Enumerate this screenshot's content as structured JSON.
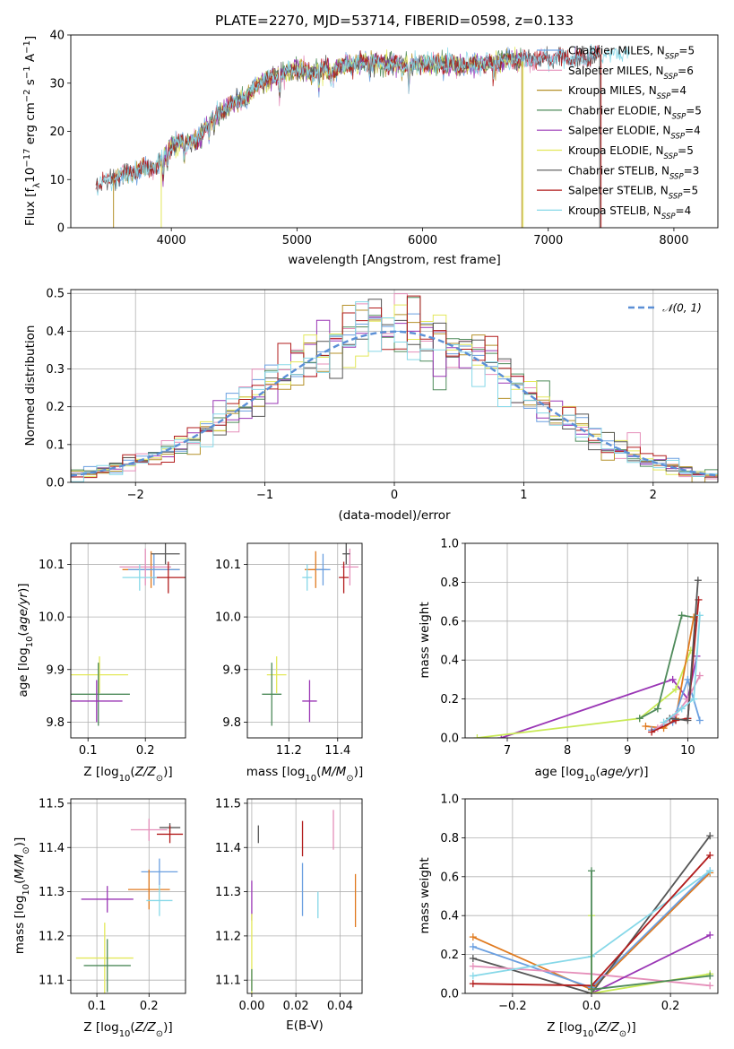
{
  "figure": {
    "title": "PLATE=2270, MJD=53714, FIBERID=0598, z=0.133"
  },
  "colors": {
    "Chabrier MILES": "#6a9fe0",
    "Salpeter MILES": "#e58fba",
    "Kroupa MILES": "#b5912a",
    "Chabrier ELODIE": "#4e8a5a",
    "Salpeter ELODIE": "#9a36b5",
    "Kroupa ELODIE": "#e3e85a",
    "Chabrier STELIB": "#555555",
    "Salpeter STELIB": "#b21c1c",
    "Kroupa STELIB": "#86d8e8",
    "extra_orange": "#e07a1f",
    "extra_lime": "#c9ea55",
    "normal_curve": "#5b8fd6"
  },
  "chart_data": [
    {
      "id": "spectrum",
      "type": "line",
      "title": "PLATE=2270, MJD=53714, FIBERID=0598, z=0.133",
      "xlabel": "wavelength [Angstrom, rest frame]",
      "ylabel_parts": [
        "Flux [f",
        "λ",
        "10",
        "−17",
        " erg cm",
        "−2",
        " s",
        "−1",
        " A",
        "−1",
        "]"
      ],
      "xlim": [
        3200,
        8350
      ],
      "ylim": [
        0,
        40
      ],
      "xticks": [
        4000,
        5000,
        6000,
        7000,
        8000
      ],
      "yticks": [
        0,
        10,
        20,
        30,
        40
      ],
      "grid": false,
      "legend_position": "top-right",
      "legend": [
        {
          "name": "Chabrier MILES",
          "nssp": "5"
        },
        {
          "name": "Salpeter MILES",
          "nssp": "6"
        },
        {
          "name": "Kroupa MILES",
          "nssp": "4"
        },
        {
          "name": "Chabrier ELODIE",
          "nssp": "5"
        },
        {
          "name": "Salpeter ELODIE",
          "nssp": "4"
        },
        {
          "name": "Kroupa ELODIE",
          "nssp": "5"
        },
        {
          "name": "Chabrier STELIB",
          "nssp": "3"
        },
        {
          "name": "Salpeter STELIB",
          "nssp": "5"
        },
        {
          "name": "Kroupa STELIB",
          "nssp": "4"
        }
      ],
      "continuum": [
        [
          3400,
          9
        ],
        [
          3500,
          10
        ],
        [
          3600,
          11
        ],
        [
          3700,
          11.5
        ],
        [
          3800,
          12.5
        ],
        [
          3900,
          13
        ],
        [
          4000,
          17
        ],
        [
          4100,
          18
        ],
        [
          4200,
          18
        ],
        [
          4300,
          22
        ],
        [
          4400,
          24
        ],
        [
          4500,
          26
        ],
        [
          4600,
          27
        ],
        [
          4700,
          30
        ],
        [
          4800,
          31
        ],
        [
          4900,
          32
        ],
        [
          5000,
          33
        ],
        [
          5100,
          32
        ],
        [
          5200,
          33
        ],
        [
          5300,
          32.5
        ],
        [
          5400,
          34
        ],
        [
          5500,
          34
        ],
        [
          5600,
          34.5
        ],
        [
          5700,
          34
        ],
        [
          5800,
          34
        ],
        [
          5900,
          33.5
        ],
        [
          6000,
          34
        ],
        [
          6100,
          34
        ],
        [
          6200,
          34
        ],
        [
          6300,
          33.5
        ],
        [
          6400,
          34
        ],
        [
          6500,
          34
        ],
        [
          6600,
          34.5
        ],
        [
          6700,
          35
        ],
        [
          6800,
          34.5
        ],
        [
          6900,
          35
        ],
        [
          7000,
          35
        ],
        [
          7100,
          35.5
        ],
        [
          7200,
          35
        ],
        [
          7300,
          35
        ],
        [
          7400,
          36
        ],
        [
          7500,
          36
        ],
        [
          7600,
          36
        ]
      ],
      "wavelength_range": [
        3400,
        7650
      ],
      "edge_drops": [
        {
          "model": "Kroupa MILES",
          "x": 3540,
          "side": "start"
        },
        {
          "model": "Kroupa ELODIE",
          "x": 3920,
          "side": "start"
        },
        {
          "model": "Kroupa ELODIE",
          "x": 6800,
          "side": "end"
        },
        {
          "model": "Kroupa MILES",
          "x": 6790,
          "side": "end"
        },
        {
          "model": "Salpeter STELIB",
          "x": 7420,
          "side": "end"
        },
        {
          "model": "Chabrier STELIB",
          "x": 7410,
          "side": "end"
        }
      ]
    },
    {
      "id": "residual_hist",
      "type": "histogram",
      "xlabel": "(data-model)/error",
      "ylabel": "Normed distribution",
      "xlim": [
        -2.5,
        2.5
      ],
      "ylim": [
        0,
        0.51
      ],
      "xticks": [
        -2,
        -1,
        0,
        1,
        2
      ],
      "yticks": [
        0.0,
        0.1,
        0.2,
        0.3,
        0.4,
        0.5
      ],
      "grid": true,
      "legend_position": "top-right",
      "legend": [
        {
          "name": "𝒩(0, 1)",
          "style": "dashed"
        }
      ],
      "bin_width": 0.1,
      "normal": {
        "mean": 0,
        "sigma": 1
      }
    },
    {
      "id": "age_vs_Z",
      "type": "errorbar",
      "xlabel": "Z [log10(Z/Z⊙)]",
      "ylabel": "age [log10(age/yr)]",
      "xlim": [
        0.07,
        0.27
      ],
      "ylim": [
        9.77,
        10.14
      ],
      "xticks": [
        0.1,
        0.2
      ],
      "yticks": [
        9.8,
        9.9,
        10.0,
        10.1
      ],
      "grid": true,
      "points": [
        {
          "model": "Kroupa MILES",
          "x": 0.21,
          "xerr": 0.05,
          "y": 10.09,
          "yerr": 0.035,
          "color": "#e07a1f"
        },
        {
          "model": "Chabrier MILES",
          "x": 0.215,
          "xerr": 0.045,
          "y": 10.09,
          "yerr": 0.03,
          "color": "#6a9fe0"
        },
        {
          "model": "Salpeter MILES",
          "x": 0.2,
          "xerr": 0.045,
          "y": 10.095,
          "yerr": 0.035,
          "color": "#e58fba"
        },
        {
          "model": "Chabrier STELIB",
          "x": 0.235,
          "xerr": 0.025,
          "y": 10.12,
          "yerr": 0.02,
          "color": "#555555"
        },
        {
          "model": "Salpeter STELIB",
          "x": 0.24,
          "xerr": 0.03,
          "y": 10.075,
          "yerr": 0.03,
          "color": "#b21c1c"
        },
        {
          "model": "Kroupa STELIB",
          "x": 0.19,
          "xerr": 0.03,
          "y": 10.075,
          "yerr": 0.025,
          "color": "#86d8e8"
        },
        {
          "model": "Kroupa ELODIE",
          "x": 0.12,
          "xerr": 0.05,
          "y": 9.89,
          "yerr": 0.035,
          "color": "#e3e85a"
        },
        {
          "model": "Chabrier ELODIE",
          "x": 0.118,
          "xerr": 0.055,
          "y": 9.853,
          "yerr": 0.06,
          "color": "#4e8a5a"
        },
        {
          "model": "Salpeter ELODIE",
          "x": 0.115,
          "xerr": 0.045,
          "y": 9.84,
          "yerr": 0.04,
          "color": "#9a36b5"
        }
      ]
    },
    {
      "id": "age_vs_mass",
      "type": "errorbar",
      "xlabel": "mass [log10(M/M⊙)]",
      "ylabel": "",
      "xlim": [
        11.03,
        11.5
      ],
      "ylim": [
        9.77,
        10.14
      ],
      "xticks": [
        11.2,
        11.4
      ],
      "yticks": [
        9.8,
        9.9,
        10.0,
        10.1
      ],
      "grid": true,
      "points": [
        {
          "model": "Kroupa MILES",
          "x": 11.31,
          "xerr": 0.045,
          "y": 10.09,
          "yerr": 0.035,
          "color": "#e07a1f"
        },
        {
          "model": "Chabrier MILES",
          "x": 11.34,
          "xerr": 0.03,
          "y": 10.09,
          "yerr": 0.03,
          "color": "#6a9fe0"
        },
        {
          "model": "Salpeter MILES",
          "x": 11.45,
          "xerr": 0.035,
          "y": 10.095,
          "yerr": 0.035,
          "color": "#e58fba"
        },
        {
          "model": "Chabrier STELIB",
          "x": 11.435,
          "xerr": 0.015,
          "y": 10.12,
          "yerr": 0.02,
          "color": "#555555"
        },
        {
          "model": "Salpeter STELIB",
          "x": 11.425,
          "xerr": 0.02,
          "y": 10.075,
          "yerr": 0.03,
          "color": "#b21c1c"
        },
        {
          "model": "Kroupa STELIB",
          "x": 11.275,
          "xerr": 0.02,
          "y": 10.075,
          "yerr": 0.025,
          "color": "#86d8e8"
        },
        {
          "model": "Kroupa ELODIE",
          "x": 11.15,
          "xerr": 0.04,
          "y": 9.89,
          "yerr": 0.035,
          "color": "#e3e85a"
        },
        {
          "model": "Chabrier ELODIE",
          "x": 11.13,
          "xerr": 0.04,
          "y": 9.853,
          "yerr": 0.06,
          "color": "#4e8a5a"
        },
        {
          "model": "Salpeter ELODIE",
          "x": 11.285,
          "xerr": 0.03,
          "y": 9.84,
          "yerr": 0.04,
          "color": "#9a36b5"
        }
      ]
    },
    {
      "id": "weight_vs_age",
      "type": "line",
      "xlabel": "age [log10(age/yr)]",
      "ylabel": "mass weight",
      "xlim": [
        6.3,
        10.5
      ],
      "ylim": [
        0,
        1.0
      ],
      "xticks": [
        7,
        8,
        9,
        10
      ],
      "yticks": [
        0.0,
        0.2,
        0.4,
        0.6,
        0.8,
        1.0
      ],
      "grid": true,
      "series": [
        {
          "model": "Salpeter ELODIE",
          "color": "#9a36b5",
          "x": [
            6.9,
            9.75,
            10.0,
            10.15
          ],
          "y": [
            0.0,
            0.3,
            0.2,
            0.42
          ]
        },
        {
          "model": "Kroupa ELODIE",
          "color": "#c9ea55",
          "x": [
            6.5,
            9.2,
            9.8,
            10.05
          ],
          "y": [
            0.0,
            0.1,
            0.25,
            0.45
          ]
        },
        {
          "model": "Chabrier ELODIE",
          "color": "#4e8a5a",
          "x": [
            9.2,
            9.5,
            9.9,
            10.1
          ],
          "y": [
            0.1,
            0.15,
            0.63,
            0.62
          ]
        },
        {
          "model": "Kroupa MILES",
          "color": "#e07a1f",
          "x": [
            9.3,
            9.6,
            9.8,
            10.1
          ],
          "y": [
            0.06,
            0.05,
            0.1,
            0.62
          ]
        },
        {
          "model": "Chabrier MILES",
          "color": "#6a9fe0",
          "x": [
            9.4,
            9.75,
            10.0,
            10.2
          ],
          "y": [
            0.04,
            0.08,
            0.3,
            0.09
          ]
        },
        {
          "model": "Salpeter MILES",
          "color": "#e58fba",
          "x": [
            9.5,
            9.8,
            10.0,
            10.2
          ],
          "y": [
            0.05,
            0.12,
            0.2,
            0.32
          ]
        },
        {
          "model": "Salpeter STELIB",
          "color": "#b21c1c",
          "x": [
            9.4,
            9.8,
            10.0,
            10.18
          ],
          "y": [
            0.03,
            0.09,
            0.1,
            0.71
          ]
        },
        {
          "model": "Chabrier STELIB",
          "color": "#555555",
          "x": [
            9.7,
            10.0,
            10.17
          ],
          "y": [
            0.1,
            0.09,
            0.81
          ]
        },
        {
          "model": "Kroupa STELIB",
          "color": "#86d8e8",
          "x": [
            9.6,
            9.9,
            10.1,
            10.2
          ],
          "y": [
            0.08,
            0.15,
            0.2,
            0.63
          ]
        }
      ]
    },
    {
      "id": "mass_vs_Z",
      "type": "errorbar",
      "xlabel": "Z [log10(Z/Z⊙)]",
      "ylabel": "mass [log10(M/M⊙)]",
      "xlim": [
        0.05,
        0.27
      ],
      "ylim": [
        11.07,
        11.51
      ],
      "xticks": [
        0.1,
        0.2
      ],
      "yticks": [
        11.1,
        11.2,
        11.3,
        11.4,
        11.5
      ],
      "grid": true,
      "points": [
        {
          "model": "Salpeter MILES",
          "x": 0.2,
          "xerr": 0.035,
          "y": 11.44,
          "yerr": 0.025,
          "color": "#e58fba"
        },
        {
          "model": "Chabrier STELIB",
          "x": 0.24,
          "xerr": 0.02,
          "y": 11.445,
          "yerr": 0.01,
          "color": "#555555"
        },
        {
          "model": "Salpeter STELIB",
          "x": 0.24,
          "xerr": 0.025,
          "y": 11.43,
          "yerr": 0.02,
          "color": "#b21c1c"
        },
        {
          "model": "Chabrier MILES",
          "x": 0.22,
          "xerr": 0.035,
          "y": 11.345,
          "yerr": 0.03,
          "color": "#6a9fe0"
        },
        {
          "model": "Kroupa MILES",
          "x": 0.2,
          "xerr": 0.04,
          "y": 11.305,
          "yerr": 0.045,
          "color": "#e07a1f"
        },
        {
          "model": "Kroupa STELIB",
          "x": 0.22,
          "xerr": 0.025,
          "y": 11.28,
          "yerr": 0.035,
          "color": "#86d8e8"
        },
        {
          "model": "Salpeter ELODIE",
          "x": 0.12,
          "xerr": 0.05,
          "y": 11.283,
          "yerr": 0.03,
          "color": "#9a36b5"
        },
        {
          "model": "Kroupa ELODIE",
          "x": 0.115,
          "xerr": 0.055,
          "y": 11.15,
          "yerr": 0.08,
          "color": "#e3e85a"
        },
        {
          "model": "Chabrier ELODIE",
          "x": 0.12,
          "xerr": 0.045,
          "y": 11.133,
          "yerr": 0.06,
          "color": "#4e8a5a"
        }
      ]
    },
    {
      "id": "mass_vs_ebv",
      "type": "errorbar",
      "xlabel": "E(B-V)",
      "ylabel": "",
      "xlim": [
        -0.002,
        0.05
      ],
      "ylim": [
        11.07,
        11.51
      ],
      "xticks": [
        0.0,
        0.02,
        0.04
      ],
      "yticks": [
        11.1,
        11.2,
        11.3,
        11.4,
        11.5
      ],
      "grid": true,
      "points": [
        {
          "model": "Chabrier STELIB",
          "x": 0.003,
          "xerr": 0.0,
          "y": 11.43,
          "yerr": 0.02,
          "color": "#555555"
        },
        {
          "model": "Salpeter STELIB",
          "x": 0.023,
          "xerr": 0.0,
          "y": 11.42,
          "yerr": 0.04,
          "color": "#b21c1c"
        },
        {
          "model": "Salpeter MILES",
          "x": 0.037,
          "xerr": 0.0,
          "y": 11.44,
          "yerr": 0.045,
          "color": "#e58fba"
        },
        {
          "model": "Chabrier MILES",
          "x": 0.023,
          "xerr": 0.0,
          "y": 11.305,
          "yerr": 0.06,
          "color": "#6a9fe0"
        },
        {
          "model": "Kroupa STELIB",
          "x": 0.03,
          "xerr": 0.0,
          "y": 11.27,
          "yerr": 0.03,
          "color": "#86d8e8"
        },
        {
          "model": "Kroupa MILES",
          "x": 0.047,
          "xerr": 0.0,
          "y": 11.28,
          "yerr": 0.06,
          "color": "#e07a1f"
        },
        {
          "model": "Salpeter ELODIE",
          "x": 0.0,
          "xerr": 0.0,
          "y": 11.28,
          "yerr": 0.045,
          "color": "#9a36b5"
        },
        {
          "model": "Kroupa ELODIE",
          "x": 0.0,
          "xerr": 0.0,
          "y": 11.16,
          "yerr": 0.09,
          "color": "#e3e85a"
        },
        {
          "model": "Chabrier ELODIE",
          "x": 0.0,
          "xerr": 0.0,
          "y": 11.1,
          "yerr": 0.025,
          "color": "#4e8a5a"
        }
      ]
    },
    {
      "id": "weight_vs_Z",
      "type": "line",
      "xlabel": "Z [log10(Z/Z⊙)]",
      "ylabel": "mass weight",
      "xlim": [
        -0.32,
        0.32
      ],
      "ylim": [
        0,
        1.0
      ],
      "xticks": [
        -0.2,
        0.0,
        0.2
      ],
      "yticks": [
        0.0,
        0.2,
        0.4,
        0.6,
        0.8,
        1.0
      ],
      "grid": true,
      "series": [
        {
          "model": "Kroupa MILES",
          "color": "#e07a1f",
          "x": [
            -0.3,
            0.0,
            0.3
          ],
          "y": [
            0.29,
            0.02,
            0.62
          ]
        },
        {
          "model": "Chabrier MILES",
          "color": "#6a9fe0",
          "x": [
            -0.3,
            0.0,
            0.3
          ],
          "y": [
            0.24,
            0.03,
            0.63
          ]
        },
        {
          "model": "Chabrier STELIB",
          "color": "#555555",
          "x": [
            -0.3,
            0.0,
            0.3
          ],
          "y": [
            0.18,
            0.0,
            0.81
          ]
        },
        {
          "model": "Salpeter MILES",
          "color": "#e58fba",
          "x": [
            -0.3,
            0.0,
            0.3
          ],
          "y": [
            0.14,
            0.1,
            0.04
          ]
        },
        {
          "model": "Kroupa STELIB",
          "color": "#86d8e8",
          "x": [
            -0.3,
            0.0,
            0.3
          ],
          "y": [
            0.09,
            0.19,
            0.63
          ]
        },
        {
          "model": "Salpeter STELIB",
          "color": "#b21c1c",
          "x": [
            -0.3,
            0.0,
            0.3
          ],
          "y": [
            0.05,
            0.04,
            0.71
          ]
        },
        {
          "model": "Salpeter ELODIE",
          "color": "#9a36b5",
          "x": [
            0.0,
            0.3
          ],
          "y": [
            0.0,
            0.3
          ]
        },
        {
          "model": "Kroupa ELODIE",
          "color": "#c9ea55",
          "x": [
            0.0,
            0.0,
            0.3
          ],
          "y": [
            0.4,
            0.0,
            0.1
          ]
        },
        {
          "model": "Chabrier ELODIE",
          "color": "#4e8a5a",
          "x": [
            0.0,
            0.0,
            0.3
          ],
          "y": [
            0.63,
            0.02,
            0.09
          ]
        }
      ]
    }
  ]
}
